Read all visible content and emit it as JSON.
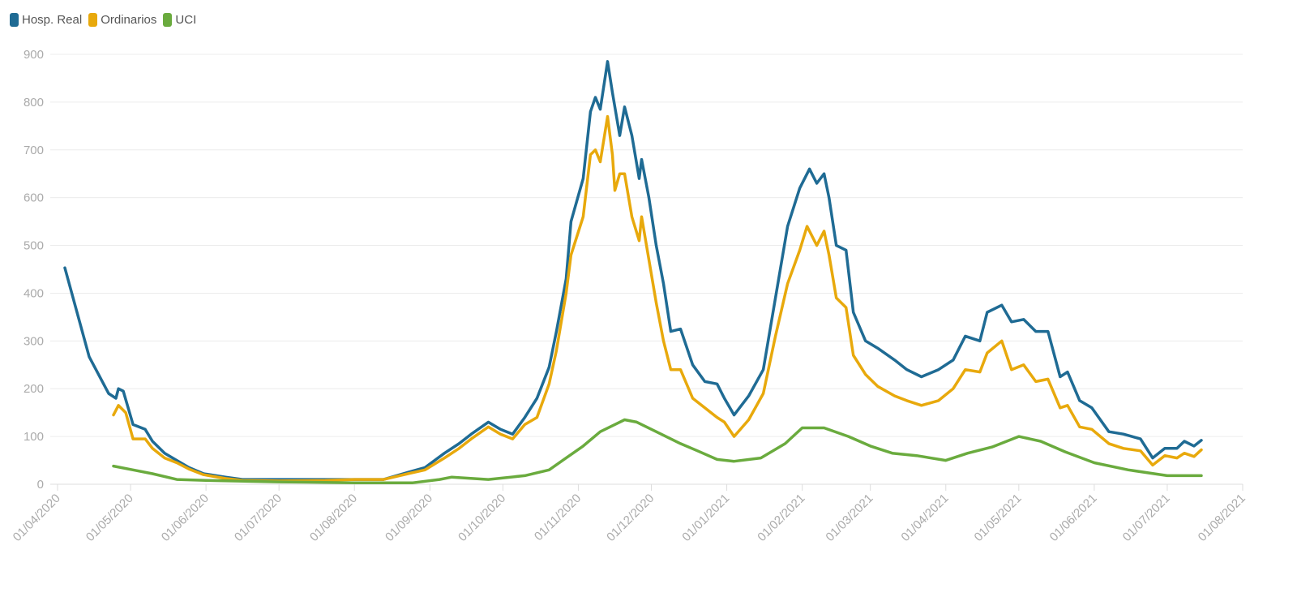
{
  "chart_data": {
    "type": "line",
    "title": "",
    "xlabel": "",
    "ylabel": "",
    "ylim": [
      0,
      900
    ],
    "yticks": [
      "0",
      "100",
      "200",
      "300",
      "400",
      "500",
      "600",
      "700",
      "800",
      "900"
    ],
    "xlim": [
      "2020-04-01",
      "2021-08-01"
    ],
    "xticks": [
      "01/04/2020",
      "01/05/2020",
      "01/06/2020",
      "01/07/2020",
      "01/08/2020",
      "01/09/2020",
      "01/10/2020",
      "01/11/2020",
      "01/12/2020",
      "01/01/2021",
      "01/02/2021",
      "01/03/2021",
      "01/04/2021",
      "01/05/2021",
      "01/06/2021",
      "01/07/2021",
      "01/08/2021"
    ],
    "grid": true,
    "legend": "top-left",
    "series": [
      {
        "name": "Hosp. Real",
        "color": "#1f6b94",
        "points": [
          [
            "2020-04-04",
            453
          ],
          [
            "2020-04-14",
            267
          ],
          [
            "2020-04-22",
            190
          ],
          [
            "2020-04-25",
            180
          ],
          [
            "2020-04-26",
            200
          ],
          [
            "2020-04-28",
            195
          ],
          [
            "2020-05-02",
            125
          ],
          [
            "2020-05-07",
            115
          ],
          [
            "2020-05-10",
            90
          ],
          [
            "2020-05-15",
            65
          ],
          [
            "2020-05-20",
            50
          ],
          [
            "2020-05-25",
            35
          ],
          [
            "2020-05-31",
            22
          ],
          [
            "2020-06-09",
            15
          ],
          [
            "2020-06-16",
            10
          ],
          [
            "2020-07-01",
            10
          ],
          [
            "2020-07-20",
            10
          ],
          [
            "2020-08-01",
            10
          ],
          [
            "2020-08-13",
            10
          ],
          [
            "2020-08-23",
            25
          ],
          [
            "2020-08-30",
            35
          ],
          [
            "2020-09-07",
            65
          ],
          [
            "2020-09-13",
            85
          ],
          [
            "2020-09-18",
            105
          ],
          [
            "2020-09-25",
            130
          ],
          [
            "2020-09-30",
            115
          ],
          [
            "2020-10-05",
            105
          ],
          [
            "2020-10-10",
            140
          ],
          [
            "2020-10-15",
            180
          ],
          [
            "2020-10-20",
            245
          ],
          [
            "2020-10-23",
            320
          ],
          [
            "2020-10-27",
            430
          ],
          [
            "2020-10-29",
            550
          ],
          [
            "2020-11-03",
            640
          ],
          [
            "2020-11-06",
            780
          ],
          [
            "2020-11-08",
            810
          ],
          [
            "2020-11-10",
            785
          ],
          [
            "2020-11-13",
            885
          ],
          [
            "2020-11-15",
            820
          ],
          [
            "2020-11-18",
            730
          ],
          [
            "2020-11-20",
            790
          ],
          [
            "2020-11-23",
            730
          ],
          [
            "2020-11-26",
            640
          ],
          [
            "2020-11-27",
            680
          ],
          [
            "2020-11-30",
            600
          ],
          [
            "2020-12-03",
            500
          ],
          [
            "2020-12-06",
            420
          ],
          [
            "2020-12-09",
            320
          ],
          [
            "2020-12-13",
            325
          ],
          [
            "2020-12-18",
            250
          ],
          [
            "2020-12-23",
            215
          ],
          [
            "2020-12-28",
            210
          ],
          [
            "2020-12-31",
            180
          ],
          [
            "2021-01-04",
            145
          ],
          [
            "2021-01-10",
            185
          ],
          [
            "2021-01-16",
            240
          ],
          [
            "2021-01-21",
            390
          ],
          [
            "2021-01-26",
            540
          ],
          [
            "2021-01-31",
            620
          ],
          [
            "2021-02-04",
            660
          ],
          [
            "2021-02-07",
            630
          ],
          [
            "2021-02-10",
            650
          ],
          [
            "2021-02-12",
            600
          ],
          [
            "2021-02-15",
            500
          ],
          [
            "2021-02-19",
            490
          ],
          [
            "2021-02-22",
            360
          ],
          [
            "2021-02-27",
            300
          ],
          [
            "2021-03-04",
            285
          ],
          [
            "2021-03-11",
            260
          ],
          [
            "2021-03-16",
            240
          ],
          [
            "2021-03-22",
            225
          ],
          [
            "2021-03-29",
            240
          ],
          [
            "2021-04-04",
            260
          ],
          [
            "2021-04-09",
            310
          ],
          [
            "2021-04-15",
            300
          ],
          [
            "2021-04-18",
            360
          ],
          [
            "2021-04-24",
            375
          ],
          [
            "2021-04-28",
            340
          ],
          [
            "2021-05-03",
            345
          ],
          [
            "2021-05-08",
            320
          ],
          [
            "2021-05-13",
            320
          ],
          [
            "2021-05-18",
            225
          ],
          [
            "2021-05-21",
            235
          ],
          [
            "2021-05-26",
            175
          ],
          [
            "2021-05-31",
            160
          ],
          [
            "2021-06-07",
            110
          ],
          [
            "2021-06-13",
            105
          ],
          [
            "2021-06-20",
            95
          ],
          [
            "2021-06-25",
            55
          ],
          [
            "2021-06-30",
            75
          ],
          [
            "2021-07-05",
            75
          ],
          [
            "2021-07-08",
            90
          ],
          [
            "2021-07-12",
            80
          ],
          [
            "2021-07-15",
            92
          ]
        ]
      },
      {
        "name": "Ordinarios",
        "color": "#e8a90c",
        "points": [
          [
            "2020-04-24",
            145
          ],
          [
            "2020-04-26",
            165
          ],
          [
            "2020-04-29",
            150
          ],
          [
            "2020-05-02",
            95
          ],
          [
            "2020-05-07",
            95
          ],
          [
            "2020-05-10",
            75
          ],
          [
            "2020-05-15",
            55
          ],
          [
            "2020-05-20",
            45
          ],
          [
            "2020-05-25",
            32
          ],
          [
            "2020-05-31",
            20
          ],
          [
            "2020-06-09",
            12
          ],
          [
            "2020-06-16",
            8
          ],
          [
            "2020-07-01",
            7
          ],
          [
            "2020-07-20",
            8
          ],
          [
            "2020-08-01",
            10
          ],
          [
            "2020-08-13",
            10
          ],
          [
            "2020-08-23",
            22
          ],
          [
            "2020-08-30",
            30
          ],
          [
            "2020-09-07",
            55
          ],
          [
            "2020-09-13",
            75
          ],
          [
            "2020-09-18",
            95
          ],
          [
            "2020-09-25",
            120
          ],
          [
            "2020-09-30",
            105
          ],
          [
            "2020-10-05",
            95
          ],
          [
            "2020-10-10",
            125
          ],
          [
            "2020-10-15",
            140
          ],
          [
            "2020-10-20",
            210
          ],
          [
            "2020-10-23",
            280
          ],
          [
            "2020-10-27",
            400
          ],
          [
            "2020-10-29",
            480
          ],
          [
            "2020-11-03",
            560
          ],
          [
            "2020-11-06",
            690
          ],
          [
            "2020-11-08",
            700
          ],
          [
            "2020-11-10",
            675
          ],
          [
            "2020-11-13",
            770
          ],
          [
            "2020-11-15",
            690
          ],
          [
            "2020-11-16",
            615
          ],
          [
            "2020-11-18",
            650
          ],
          [
            "2020-11-20",
            650
          ],
          [
            "2020-11-23",
            560
          ],
          [
            "2020-11-26",
            510
          ],
          [
            "2020-11-27",
            560
          ],
          [
            "2020-11-30",
            470
          ],
          [
            "2020-12-03",
            380
          ],
          [
            "2020-12-06",
            300
          ],
          [
            "2020-12-09",
            240
          ],
          [
            "2020-12-13",
            240
          ],
          [
            "2020-12-18",
            180
          ],
          [
            "2020-12-23",
            160
          ],
          [
            "2020-12-28",
            140
          ],
          [
            "2020-12-31",
            130
          ],
          [
            "2021-01-04",
            100
          ],
          [
            "2021-01-10",
            135
          ],
          [
            "2021-01-16",
            190
          ],
          [
            "2021-01-21",
            310
          ],
          [
            "2021-01-26",
            420
          ],
          [
            "2021-01-31",
            490
          ],
          [
            "2021-02-03",
            540
          ],
          [
            "2021-02-07",
            500
          ],
          [
            "2021-02-10",
            530
          ],
          [
            "2021-02-12",
            480
          ],
          [
            "2021-02-15",
            390
          ],
          [
            "2021-02-19",
            370
          ],
          [
            "2021-02-22",
            270
          ],
          [
            "2021-02-27",
            230
          ],
          [
            "2021-03-04",
            205
          ],
          [
            "2021-03-11",
            185
          ],
          [
            "2021-03-16",
            175
          ],
          [
            "2021-03-22",
            165
          ],
          [
            "2021-03-29",
            175
          ],
          [
            "2021-04-04",
            200
          ],
          [
            "2021-04-09",
            240
          ],
          [
            "2021-04-15",
            235
          ],
          [
            "2021-04-18",
            275
          ],
          [
            "2021-04-24",
            300
          ],
          [
            "2021-04-28",
            240
          ],
          [
            "2021-05-03",
            250
          ],
          [
            "2021-05-08",
            215
          ],
          [
            "2021-05-13",
            220
          ],
          [
            "2021-05-18",
            160
          ],
          [
            "2021-05-21",
            165
          ],
          [
            "2021-05-26",
            120
          ],
          [
            "2021-05-31",
            115
          ],
          [
            "2021-06-07",
            85
          ],
          [
            "2021-06-13",
            75
          ],
          [
            "2021-06-20",
            70
          ],
          [
            "2021-06-25",
            40
          ],
          [
            "2021-06-30",
            60
          ],
          [
            "2021-07-05",
            55
          ],
          [
            "2021-07-08",
            65
          ],
          [
            "2021-07-12",
            58
          ],
          [
            "2021-07-15",
            72
          ]
        ]
      },
      {
        "name": "UCI",
        "color": "#6aab3e",
        "points": [
          [
            "2020-04-24",
            38
          ],
          [
            "2020-05-02",
            30
          ],
          [
            "2020-05-10",
            22
          ],
          [
            "2020-05-20",
            10
          ],
          [
            "2020-06-01",
            8
          ],
          [
            "2020-07-01",
            5
          ],
          [
            "2020-08-01",
            3
          ],
          [
            "2020-08-25",
            3
          ],
          [
            "2020-09-05",
            10
          ],
          [
            "2020-09-10",
            15
          ],
          [
            "2020-09-25",
            10
          ],
          [
            "2020-10-10",
            18
          ],
          [
            "2020-10-20",
            30
          ],
          [
            "2020-10-27",
            55
          ],
          [
            "2020-11-03",
            80
          ],
          [
            "2020-11-10",
            110
          ],
          [
            "2020-11-20",
            135
          ],
          [
            "2020-11-25",
            130
          ],
          [
            "2020-12-03",
            110
          ],
          [
            "2020-12-13",
            85
          ],
          [
            "2020-12-20",
            70
          ],
          [
            "2020-12-28",
            52
          ],
          [
            "2021-01-04",
            48
          ],
          [
            "2021-01-15",
            55
          ],
          [
            "2021-01-25",
            85
          ],
          [
            "2021-02-01",
            118
          ],
          [
            "2021-02-10",
            118
          ],
          [
            "2021-02-20",
            100
          ],
          [
            "2021-03-01",
            80
          ],
          [
            "2021-03-10",
            65
          ],
          [
            "2021-03-20",
            60
          ],
          [
            "2021-04-01",
            50
          ],
          [
            "2021-04-10",
            65
          ],
          [
            "2021-04-20",
            78
          ],
          [
            "2021-05-01",
            100
          ],
          [
            "2021-05-10",
            90
          ],
          [
            "2021-05-20",
            68
          ],
          [
            "2021-06-01",
            45
          ],
          [
            "2021-06-15",
            30
          ],
          [
            "2021-07-01",
            18
          ],
          [
            "2021-07-15",
            18
          ]
        ]
      }
    ]
  }
}
